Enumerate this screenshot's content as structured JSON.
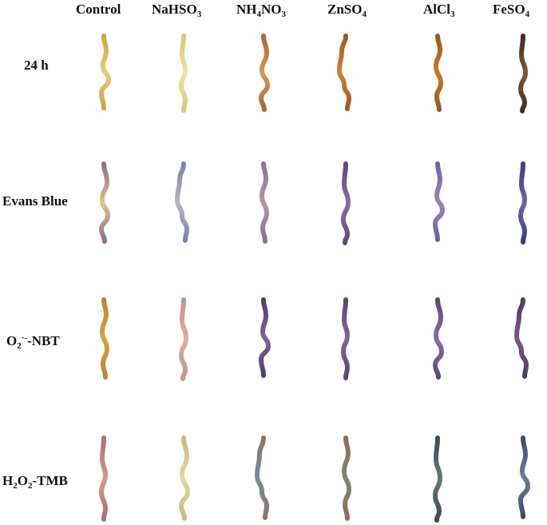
{
  "columns": [
    {
      "id": "control",
      "base": "Control",
      "sub": "",
      "after": "",
      "sub2": ""
    },
    {
      "id": "nahso3",
      "base": "NaHSO",
      "sub": "3",
      "after": "",
      "sub2": ""
    },
    {
      "id": "nh4no3",
      "base": "NH",
      "sub": "4",
      "after": "NO",
      "sub2": "3"
    },
    {
      "id": "znso4",
      "base": "ZnSO",
      "sub": "4",
      "after": "",
      "sub2": ""
    },
    {
      "id": "alcl3",
      "base": "AlCl",
      "sub": "3",
      "after": "",
      "sub2": ""
    },
    {
      "id": "feso4",
      "base": "FeSO",
      "sub": "4",
      "after": "",
      "sub2": ""
    }
  ],
  "rows": [
    {
      "id": "24h",
      "label": "24 h",
      "colors": [
        [
          "#e6cf78",
          "#c7a34a"
        ],
        [
          "#ece69a",
          "#d8c77a"
        ],
        [
          "#d49a57",
          "#a8673a"
        ],
        [
          "#c8853d",
          "#9a5a26"
        ],
        [
          "#c47a2d",
          "#9a5a1e"
        ],
        [
          "#7a5a3a",
          "#3e2c26"
        ]
      ]
    },
    {
      "id": "evans",
      "label": "Evans Blue",
      "colors": [
        [
          "#d9c68f",
          "#8f6f88"
        ],
        [
          "#b9b6b9",
          "#7e7fb3"
        ],
        [
          "#b995a3",
          "#8a7296"
        ],
        [
          "#8a6f9b",
          "#5e4a7d"
        ],
        [
          "#9a87aa",
          "#6c63a2"
        ],
        [
          "#6e65a4",
          "#3e3a80"
        ]
      ]
    },
    {
      "id": "nbt",
      "label": "O",
      "label_sub": "2",
      "label_sup": "·-",
      "label_after": "-NBT",
      "colors": [
        [
          "#d4a440",
          "#b8863a"
        ],
        [
          "#d7b1a3",
          "#c2958e"
        ],
        [
          "#7b6395",
          "#4e3f6f"
        ],
        [
          "#806795",
          "#5a4873"
        ],
        [
          "#8c6aa0",
          "#5f4677"
        ],
        [
          "#7b5a88",
          "#52395f"
        ]
      ]
    },
    {
      "id": "tmb",
      "label": "H",
      "label_sub": "2",
      "label_sup": "",
      "label_after": "O",
      "label_sub2": "2",
      "label_after2": "-TMB",
      "colors": [
        [
          "#d29a8a",
          "#a9707a"
        ],
        [
          "#e0d8a8",
          "#c8b982"
        ],
        [
          "#7a88a0",
          "#8c7566"
        ],
        [
          "#7a8a73",
          "#8f6b5a"
        ],
        [
          "#67786f",
          "#3a4a59"
        ],
        [
          "#6f7e92",
          "#3f4a68"
        ]
      ]
    }
  ]
}
